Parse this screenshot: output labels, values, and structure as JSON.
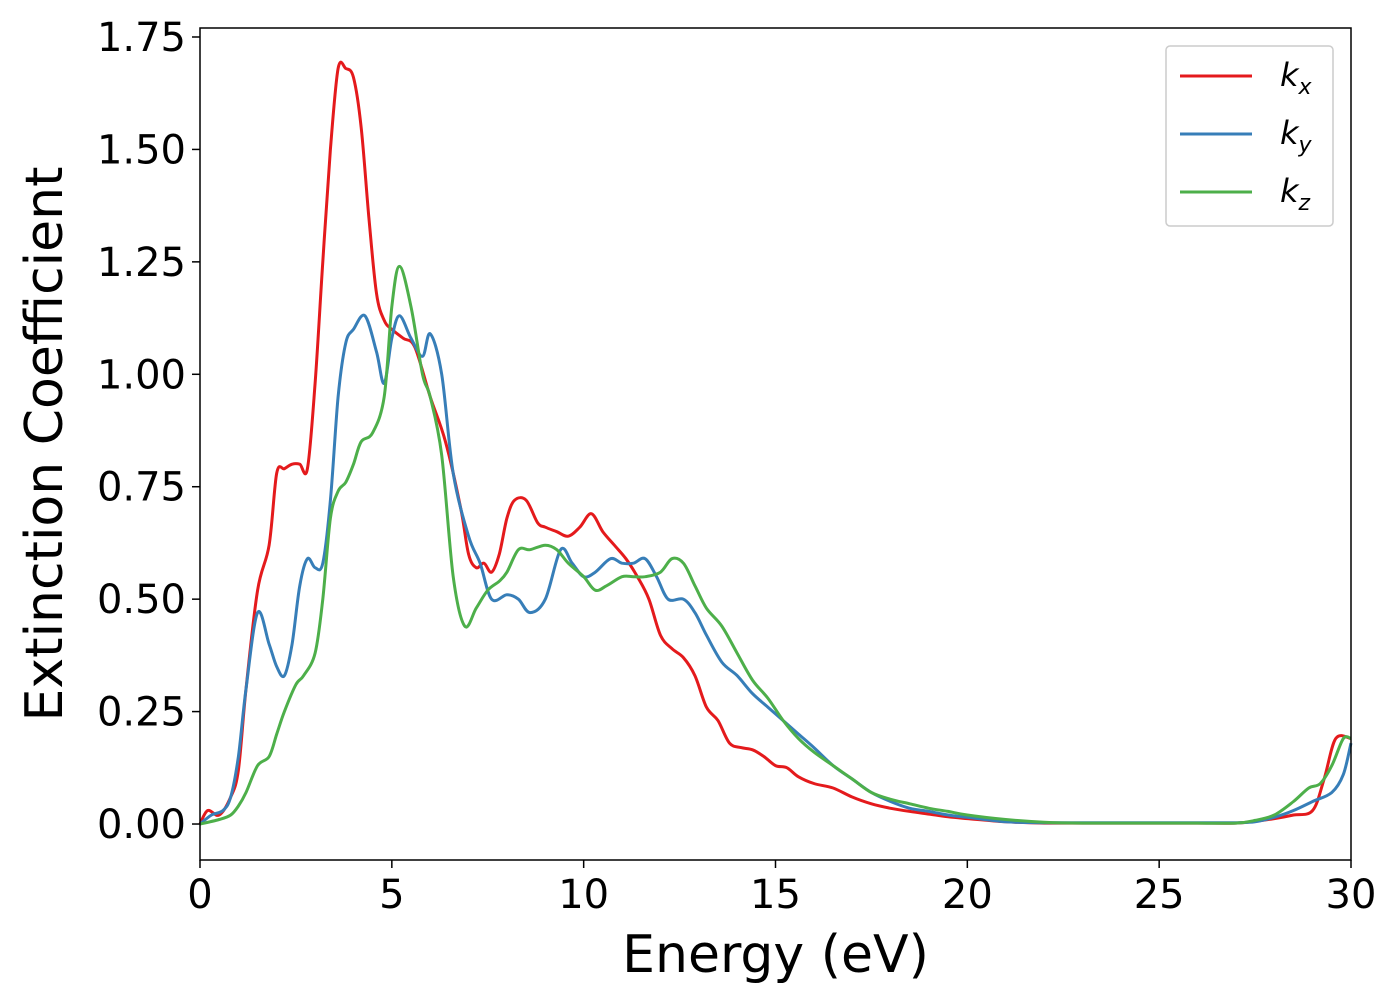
{
  "chart_data": {
    "type": "line",
    "xlabel": "Energy (eV)",
    "ylabel": "Extinction Coefficient",
    "xlim": [
      0,
      30
    ],
    "ylim": [
      -0.08,
      1.77
    ],
    "xticks": [
      0,
      5,
      10,
      15,
      20,
      25,
      30
    ],
    "yticks": [
      0.0,
      0.25,
      0.5,
      0.75,
      1.0,
      1.25,
      1.5,
      1.75
    ],
    "xtick_labels": [
      "0",
      "5",
      "10",
      "15",
      "20",
      "25",
      "30"
    ],
    "ytick_labels": [
      "0.00",
      "0.25",
      "0.50",
      "0.75",
      "1.00",
      "1.25",
      "1.50",
      "1.75"
    ],
    "grid": false,
    "legend_position": "top-right",
    "series": [
      {
        "name": "k",
        "subscript": "x",
        "color": "#e41a1c",
        "x": [
          0,
          0.2,
          0.5,
          0.8,
          1.0,
          1.2,
          1.5,
          1.8,
          2.0,
          2.2,
          2.4,
          2.6,
          2.8,
          3.0,
          3.2,
          3.4,
          3.6,
          3.8,
          4.0,
          4.2,
          4.4,
          4.6,
          4.8,
          5.0,
          5.3,
          5.6,
          6.0,
          6.4,
          6.8,
          7.0,
          7.2,
          7.4,
          7.6,
          7.8,
          8.0,
          8.2,
          8.5,
          8.8,
          9.0,
          9.3,
          9.6,
          9.9,
          10.2,
          10.5,
          10.8,
          11.1,
          11.4,
          11.7,
          12.0,
          12.3,
          12.6,
          12.9,
          13.2,
          13.5,
          13.8,
          14.1,
          14.4,
          14.7,
          15.0,
          15.3,
          15.6,
          16.0,
          16.5,
          17.0,
          17.5,
          18.0,
          18.5,
          19.0,
          19.5,
          20.0,
          21.0,
          22.0,
          23.0,
          24.0,
          25.0,
          26.0,
          27.0,
          27.5,
          28.0,
          28.5,
          29.0,
          29.3,
          29.6,
          30.0
        ],
        "y": [
          0.0,
          0.03,
          0.02,
          0.06,
          0.12,
          0.3,
          0.52,
          0.62,
          0.78,
          0.79,
          0.8,
          0.8,
          0.79,
          0.98,
          1.25,
          1.5,
          1.68,
          1.68,
          1.66,
          1.55,
          1.35,
          1.18,
          1.12,
          1.1,
          1.08,
          1.06,
          0.95,
          0.85,
          0.7,
          0.6,
          0.57,
          0.58,
          0.56,
          0.6,
          0.68,
          0.72,
          0.72,
          0.67,
          0.66,
          0.65,
          0.64,
          0.66,
          0.69,
          0.65,
          0.62,
          0.59,
          0.55,
          0.5,
          0.42,
          0.39,
          0.37,
          0.33,
          0.26,
          0.23,
          0.18,
          0.17,
          0.165,
          0.15,
          0.13,
          0.125,
          0.105,
          0.09,
          0.08,
          0.06,
          0.045,
          0.035,
          0.028,
          0.022,
          0.016,
          0.012,
          0.005,
          0.002,
          0.002,
          0.002,
          0.002,
          0.002,
          0.002,
          0.006,
          0.012,
          0.02,
          0.03,
          0.1,
          0.19,
          0.19
        ]
      },
      {
        "name": "k",
        "subscript": "y",
        "color": "#377eb8",
        "x": [
          0,
          0.3,
          0.6,
          0.8,
          1.0,
          1.2,
          1.5,
          1.8,
          2.0,
          2.2,
          2.4,
          2.6,
          2.8,
          3.0,
          3.2,
          3.4,
          3.6,
          3.8,
          4.0,
          4.3,
          4.6,
          4.8,
          5.0,
          5.2,
          5.5,
          5.8,
          6.0,
          6.3,
          6.6,
          7.0,
          7.3,
          7.6,
          8.0,
          8.3,
          8.6,
          9.0,
          9.4,
          9.7,
          10.0,
          10.3,
          10.7,
          11.0,
          11.3,
          11.6,
          11.9,
          12.2,
          12.6,
          12.9,
          13.2,
          13.6,
          14.0,
          14.4,
          14.8,
          15.2,
          15.6,
          16.0,
          16.5,
          17.0,
          17.5,
          18.0,
          18.5,
          19.0,
          19.5,
          20.0,
          21.0,
          22.0,
          23.0,
          24.0,
          25.0,
          26.0,
          27.0,
          27.5,
          28.0,
          28.5,
          29.0,
          29.5,
          29.8,
          30.0
        ],
        "y": [
          0.0,
          0.02,
          0.03,
          0.06,
          0.15,
          0.3,
          0.47,
          0.4,
          0.35,
          0.33,
          0.4,
          0.53,
          0.59,
          0.57,
          0.58,
          0.72,
          0.95,
          1.07,
          1.1,
          1.13,
          1.05,
          0.98,
          1.08,
          1.13,
          1.08,
          1.04,
          1.09,
          1.0,
          0.78,
          0.64,
          0.58,
          0.5,
          0.51,
          0.5,
          0.47,
          0.5,
          0.61,
          0.58,
          0.55,
          0.56,
          0.59,
          0.58,
          0.58,
          0.59,
          0.55,
          0.5,
          0.5,
          0.47,
          0.42,
          0.36,
          0.33,
          0.29,
          0.26,
          0.23,
          0.2,
          0.17,
          0.13,
          0.1,
          0.07,
          0.05,
          0.035,
          0.028,
          0.02,
          0.015,
          0.005,
          0.003,
          0.003,
          0.003,
          0.003,
          0.003,
          0.003,
          0.005,
          0.015,
          0.03,
          0.05,
          0.07,
          0.11,
          0.18
        ]
      },
      {
        "name": "k",
        "subscript": "z",
        "color": "#4daf4a",
        "x": [
          0,
          0.5,
          0.8,
          1.0,
          1.2,
          1.5,
          1.8,
          2.0,
          2.2,
          2.5,
          2.7,
          3.0,
          3.2,
          3.4,
          3.6,
          3.8,
          4.0,
          4.2,
          4.5,
          4.8,
          5.0,
          5.2,
          5.5,
          5.8,
          6.0,
          6.3,
          6.6,
          6.9,
          7.2,
          7.5,
          7.8,
          8.0,
          8.3,
          8.6,
          9.0,
          9.3,
          9.6,
          10.0,
          10.3,
          10.6,
          11.0,
          11.3,
          11.6,
          12.0,
          12.3,
          12.6,
          12.9,
          13.2,
          13.6,
          14.0,
          14.4,
          14.8,
          15.2,
          15.6,
          16.0,
          16.5,
          17.0,
          17.5,
          18.0,
          18.5,
          19.0,
          19.5,
          20.0,
          21.0,
          22.0,
          23.0,
          24.0,
          25.0,
          26.0,
          27.0,
          27.5,
          28.0,
          28.5,
          28.9,
          29.2,
          29.5,
          29.8,
          30.0
        ],
        "y": [
          0.0,
          0.01,
          0.02,
          0.04,
          0.07,
          0.13,
          0.15,
          0.2,
          0.25,
          0.31,
          0.33,
          0.38,
          0.5,
          0.68,
          0.74,
          0.76,
          0.8,
          0.85,
          0.87,
          0.95,
          1.15,
          1.24,
          1.15,
          1.0,
          0.95,
          0.82,
          0.55,
          0.44,
          0.48,
          0.52,
          0.54,
          0.56,
          0.61,
          0.61,
          0.62,
          0.61,
          0.58,
          0.55,
          0.52,
          0.53,
          0.55,
          0.55,
          0.55,
          0.56,
          0.59,
          0.58,
          0.53,
          0.48,
          0.44,
          0.38,
          0.32,
          0.28,
          0.23,
          0.19,
          0.16,
          0.13,
          0.1,
          0.07,
          0.055,
          0.045,
          0.035,
          0.028,
          0.02,
          0.01,
          0.004,
          0.002,
          0.002,
          0.002,
          0.002,
          0.002,
          0.008,
          0.02,
          0.05,
          0.08,
          0.09,
          0.13,
          0.19,
          0.19
        ]
      }
    ]
  }
}
